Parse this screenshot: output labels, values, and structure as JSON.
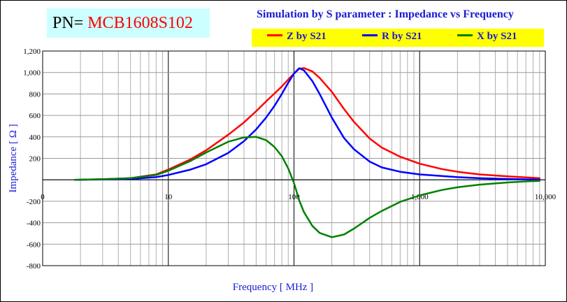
{
  "part": {
    "prefix": "PN=",
    "value": "MCB1608S102"
  },
  "chart_data": {
    "type": "line",
    "title": "Simulation by S parameter : Impedance vs Frequency",
    "xlabel": "Frequency [ MHz ]",
    "ylabel": "Impedance [ Ω ]",
    "x_scale": "log",
    "xlim": [
      1,
      10000
    ],
    "ylim": [
      -800,
      1200
    ],
    "y_ticks": [
      -800,
      -600,
      -400,
      -200,
      0,
      200,
      400,
      600,
      800,
      1000,
      1200
    ],
    "y_tick_labels": [
      "-800",
      "-600",
      "-400",
      "-200",
      "",
      "200",
      "400",
      "600",
      "800",
      "1,000",
      "1,200"
    ],
    "x_tick_labels": [
      {
        "value": 1,
        "label": "0"
      },
      {
        "value": 10,
        "label": "10"
      },
      {
        "value": 100,
        "label": "100"
      },
      {
        "value": 1000,
        "label": "1,000"
      },
      {
        "value": 10000,
        "label": "10,000"
      }
    ],
    "grid": true,
    "legend_position": "top-right",
    "series": [
      {
        "name": "Z by S21",
        "color": "#ff0000",
        "x": [
          1.8,
          3,
          5,
          8,
          10,
          15,
          20,
          30,
          40,
          50,
          60,
          70,
          80,
          90,
          100,
          110,
          120,
          140,
          160,
          200,
          250,
          300,
          400,
          500,
          700,
          1000,
          1500,
          2000,
          3000,
          5000,
          7000,
          9000
        ],
        "y": [
          0,
          5,
          15,
          50,
          95,
          190,
          275,
          420,
          535,
          640,
          730,
          805,
          870,
          935,
          990,
          1035,
          1042,
          1010,
          950,
          820,
          660,
          540,
          385,
          300,
          215,
          150,
          100,
          75,
          50,
          32,
          22,
          15
        ]
      },
      {
        "name": "R by S21",
        "color": "#0000ff",
        "x": [
          1.8,
          3,
          5,
          8,
          10,
          15,
          20,
          30,
          40,
          50,
          60,
          70,
          80,
          90,
          100,
          110,
          120,
          140,
          160,
          200,
          250,
          300,
          400,
          500,
          700,
          1000,
          1500,
          2000,
          3000,
          5000,
          7000,
          9000
        ],
        "y": [
          0,
          3,
          8,
          25,
          45,
          95,
          145,
          250,
          360,
          470,
          580,
          690,
          800,
          905,
          990,
          1040,
          1020,
          920,
          800,
          580,
          390,
          285,
          170,
          115,
          75,
          50,
          35,
          25,
          15,
          8,
          4,
          2
        ]
      },
      {
        "name": "X by S21",
        "color": "#008000",
        "x": [
          1.8,
          3,
          5,
          8,
          10,
          15,
          20,
          30,
          40,
          50,
          60,
          70,
          80,
          90,
          100,
          110,
          120,
          140,
          160,
          200,
          250,
          300,
          400,
          500,
          700,
          1000,
          1500,
          2000,
          3000,
          5000,
          7000,
          9000
        ],
        "y": [
          0,
          5,
          15,
          45,
          85,
          175,
          255,
          355,
          395,
          400,
          370,
          305,
          220,
          105,
          -30,
          -190,
          -300,
          -430,
          -495,
          -535,
          -510,
          -455,
          -355,
          -290,
          -205,
          -145,
          -95,
          -70,
          -45,
          -25,
          -15,
          -10
        ]
      }
    ]
  }
}
